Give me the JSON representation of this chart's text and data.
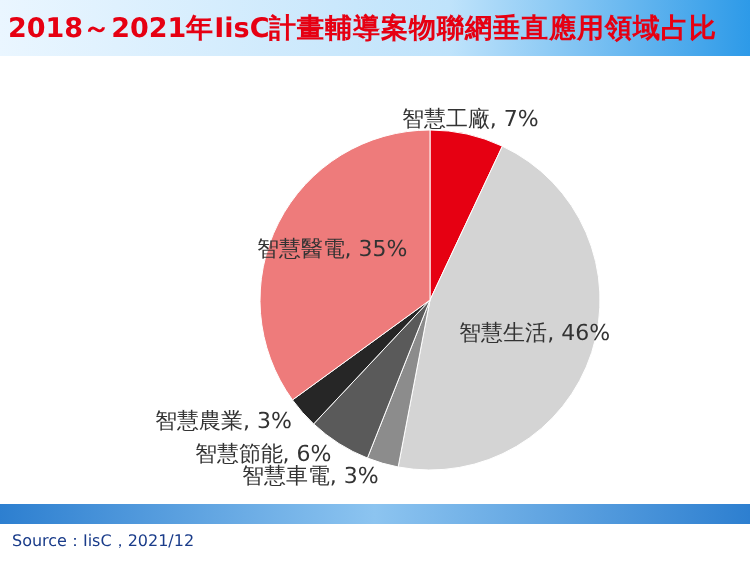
{
  "chart_data": {
    "type": "pie",
    "title": "2018～2021年IisC計畫輔導案物聯網垂直應用領域占比",
    "categories": [
      "智慧工廠",
      "智慧生活",
      "智慧車電",
      "智慧節能",
      "智慧農業",
      "智慧醫電"
    ],
    "values": [
      7,
      46,
      3,
      6,
      3,
      35
    ],
    "value_labels": [
      "7%",
      "46%",
      "3%",
      "6%",
      "3%",
      "35%"
    ],
    "colors": [
      "#e60012",
      "#d4d4d4",
      "#8c8c8c",
      "#5a5a5a",
      "#262626",
      "#ee7b7b"
    ],
    "annotations": [
      "Source：IisC，2021/12"
    ],
    "legend": false
  }
}
